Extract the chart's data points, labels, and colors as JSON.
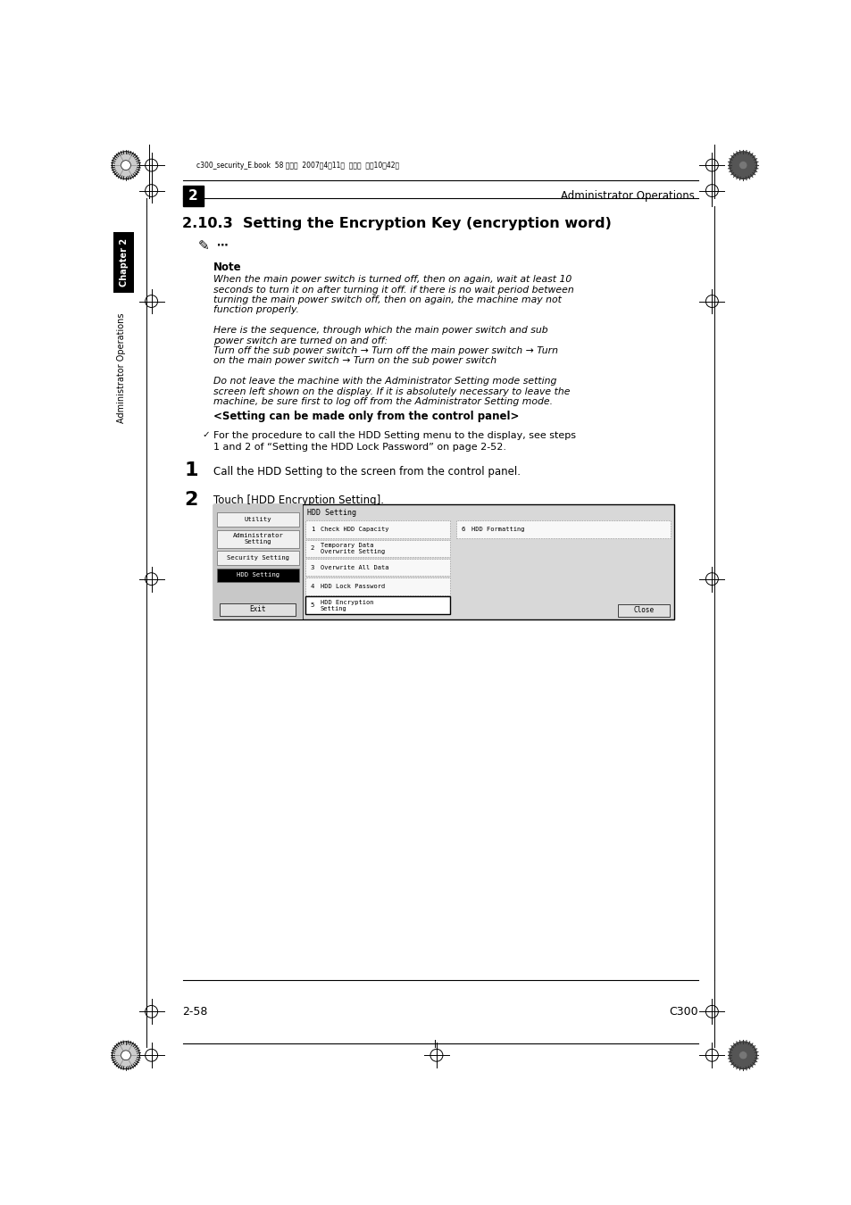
{
  "page_width": 9.54,
  "page_height": 13.5,
  "bg_color": "#ffffff",
  "header_text": "c300_security_E.book  58 ページ  2007年4月11日  水曜日  午前10時42分",
  "chapter_num": "2",
  "header_right": "Administrator Operations",
  "section_title": "2.10.3  Setting the Encryption Key (encryption word)",
  "note_label": "Note",
  "note_lines": [
    "When the main power switch is turned off, then on again, wait at least 10",
    "seconds to turn it on after turning it off. if there is no wait period between",
    "turning the main power switch off, then on again, the machine may not",
    "function properly.",
    "",
    "Here is the sequence, through which the main power switch and sub",
    "power switch are turned on and off:",
    "Turn off the sub power switch → Turn off the main power switch → Turn",
    "on the main power switch → Turn on the sub power switch",
    "",
    "Do not leave the machine with the Administrator Setting mode setting",
    "screen left shown on the display. If it is absolutely necessary to leave the",
    "machine, be sure first to log off from the Administrator Setting mode."
  ],
  "setting_header": "<Setting can be made only from the control panel>",
  "bullet_text1": "For the procedure to call the HDD Setting menu to the display, see steps",
  "bullet_text2": "1 and 2 of “Setting the HDD Lock Password” on page 2-52.",
  "step1_num": "1",
  "step1_text": "Call the HDD Setting to the screen from the control panel.",
  "step2_num": "2",
  "step2_text": "Touch [HDD Encryption Setting].",
  "sidebar_chapter": "Chapter 2",
  "sidebar_admin": "Administrator Operations",
  "footer_left": "2-58",
  "footer_right": "C300"
}
